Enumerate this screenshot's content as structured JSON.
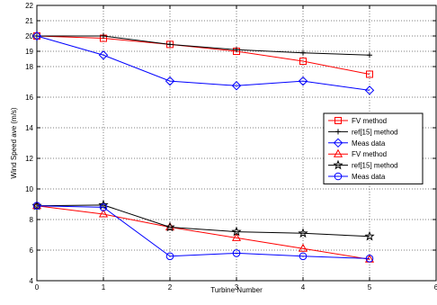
{
  "chart_data": {
    "type": "line",
    "xlabel": "Turbine Number",
    "ylabel": "Wind Speed ave (m/s)",
    "xlim": [
      0,
      6
    ],
    "ylim": [
      4,
      22
    ],
    "xticks": [
      0,
      1,
      2,
      3,
      4,
      5,
      6
    ],
    "yticks": [
      4,
      6,
      8,
      10,
      12,
      14,
      16,
      18,
      19,
      20,
      21,
      22
    ],
    "grid": true,
    "legend_position": "right",
    "x": [
      0,
      1,
      2,
      3,
      4,
      5
    ],
    "series": [
      {
        "name": "FV method",
        "color": "#ff0000",
        "marker": "square",
        "values": [
          20.0,
          19.85,
          19.45,
          19.0,
          18.35,
          17.5
        ]
      },
      {
        "name": "ref[15] method",
        "color": "#000000",
        "marker": "plus",
        "values": [
          20.0,
          20.0,
          19.45,
          19.1,
          18.9,
          18.75
        ]
      },
      {
        "name": "Meas data",
        "color": "#0000ff",
        "marker": "diamond",
        "values": [
          20.0,
          18.75,
          17.05,
          16.75,
          17.05,
          16.45
        ]
      },
      {
        "name": "FV method",
        "color": "#ff0000",
        "marker": "triangle",
        "values": [
          8.9,
          8.35,
          7.5,
          6.8,
          6.1,
          5.4
        ]
      },
      {
        "name": "ref[15] method",
        "color": "#000000",
        "marker": "star",
        "values": [
          8.9,
          8.95,
          7.5,
          7.2,
          7.1,
          6.9
        ]
      },
      {
        "name": "Meas data",
        "color": "#0000ff",
        "marker": "circle",
        "values": [
          8.9,
          8.8,
          5.6,
          5.8,
          5.6,
          5.45
        ]
      }
    ]
  }
}
